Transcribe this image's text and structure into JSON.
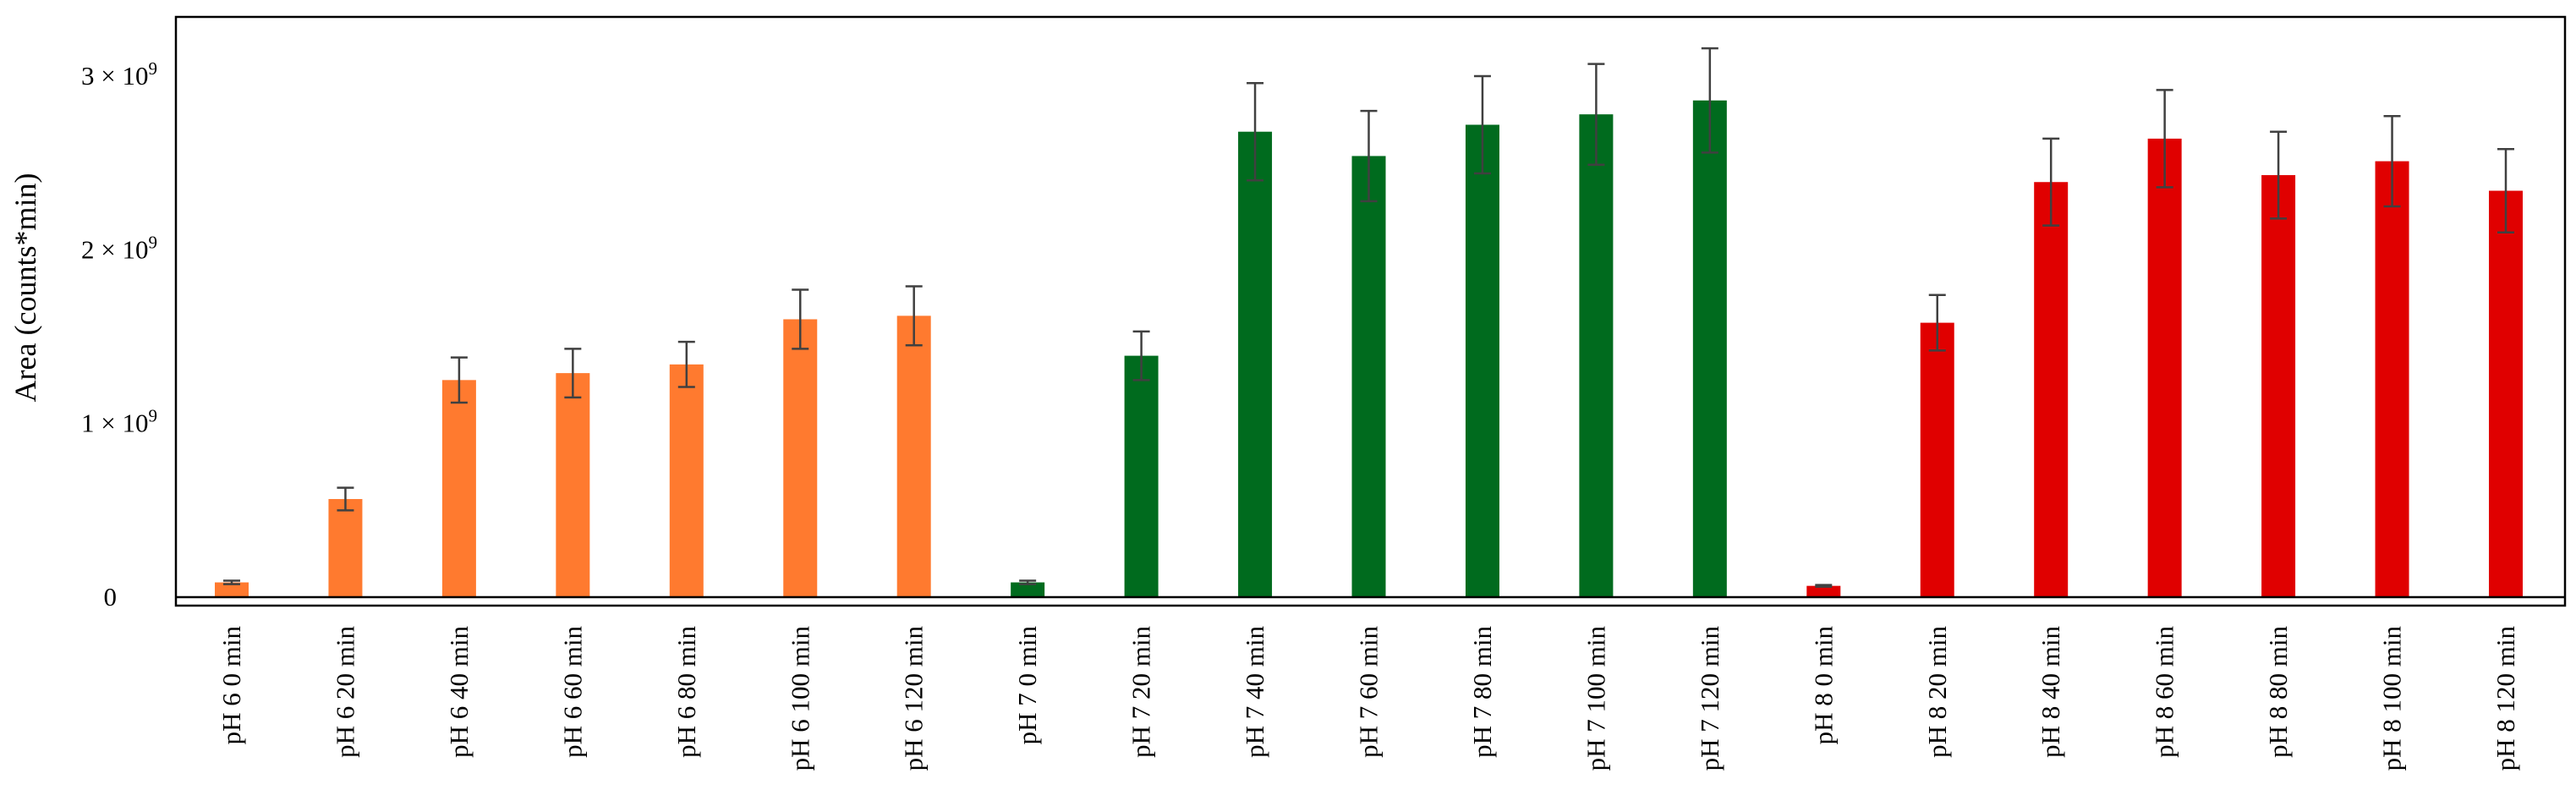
{
  "chart_data": {
    "type": "bar",
    "title": "",
    "xlabel": "",
    "ylabel": "Area (counts*min)",
    "ylim": [
      -0.05,
      3.35
    ],
    "yticks": [
      {
        "value": 0,
        "label": "0"
      },
      {
        "value": 1,
        "label": "1 × 10",
        "exp": "9"
      },
      {
        "value": 2,
        "label": "2 × 10",
        "exp": "9"
      },
      {
        "value": 3,
        "label": "3 × 10",
        "exp": "9"
      }
    ],
    "y_value_unit": "×10^9 counts*min",
    "grid": false,
    "legend": "none",
    "categories": [
      "pH 6 0 min",
      "pH 6 20 min",
      "pH 6 40 min",
      "pH 6 60 min",
      "pH 6 80 min",
      "pH 6 100 min",
      "pH 6 120 min",
      "pH 7 0 min",
      "pH 7 20 min",
      "pH 7 40 min",
      "pH 7 60 min",
      "pH 7 80 min",
      "pH 7 100 min",
      "pH 7 120 min",
      "pH 8 0 min",
      "pH 8 20 min",
      "pH 8 40 min",
      "pH 8 60 min",
      "pH 8 80 min",
      "pH 8 100 min",
      "pH 8 120 min"
    ],
    "values": [
      0.085,
      0.565,
      1.25,
      1.29,
      1.34,
      1.6,
      1.62,
      0.085,
      1.39,
      2.68,
      2.54,
      2.72,
      2.78,
      2.86,
      0.065,
      1.58,
      2.39,
      2.64,
      2.43,
      2.51,
      2.34
    ],
    "errors": [
      0.01,
      0.065,
      0.13,
      0.14,
      0.13,
      0.17,
      0.17,
      0.01,
      0.14,
      0.28,
      0.26,
      0.28,
      0.29,
      0.3,
      0.005,
      0.16,
      0.25,
      0.28,
      0.25,
      0.26,
      0.24
    ],
    "bar_colors": [
      "#FF7A2F",
      "#FF7A2F",
      "#FF7A2F",
      "#FF7A2F",
      "#FF7A2F",
      "#FF7A2F",
      "#FF7A2F",
      "#006B1E",
      "#006B1E",
      "#006B1E",
      "#006B1E",
      "#006B1E",
      "#006B1E",
      "#006B1E",
      "#E00000",
      "#E00000",
      "#E00000",
      "#E00000",
      "#E00000",
      "#E00000",
      "#E00000"
    ],
    "error_bar_color": "#404040"
  }
}
